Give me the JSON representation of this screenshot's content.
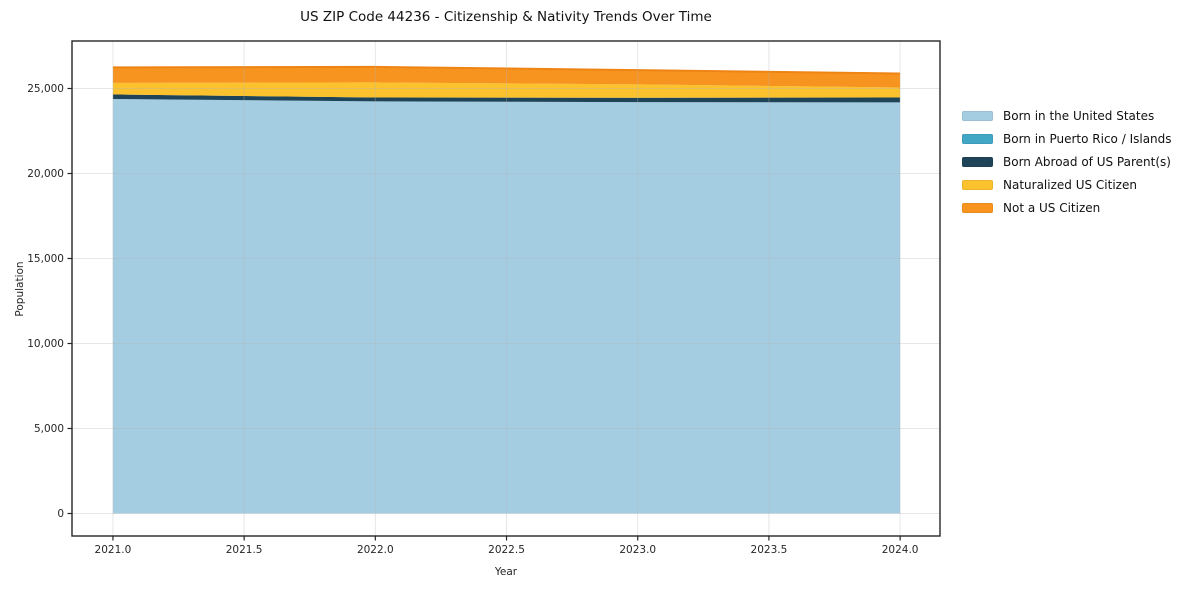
{
  "chart_data": {
    "type": "area",
    "stacked": true,
    "title": "US ZIP Code 44236 - Citizenship & Nativity Trends Over Time",
    "xlabel": "Year",
    "ylabel": "Population",
    "x": [
      2021,
      2022,
      2023,
      2024
    ],
    "series": [
      {
        "name": "Born in the United States",
        "color": "#a5cde2",
        "values": [
          24380,
          24240,
          24200,
          24180
        ]
      },
      {
        "name": "Born in Puerto Rico / Islands",
        "color": "#42a6c6",
        "values": [
          0,
          0,
          0,
          0
        ]
      },
      {
        "name": "Born Abroad of US Parent(s)",
        "color": "#1f4457",
        "values": [
          270,
          230,
          250,
          290
        ]
      },
      {
        "name": "Naturalized US Citizen",
        "color": "#fbc22d",
        "values": [
          680,
          890,
          790,
          590
        ]
      },
      {
        "name": "Not a US Citizen",
        "color": "#f7941f",
        "values": [
          910,
          910,
          840,
          820
        ]
      }
    ],
    "stack_totals": [
      26240,
      26270,
      26080,
      25880
    ],
    "xticks": [
      2021.0,
      2021.5,
      2022.0,
      2022.5,
      2023.0,
      2023.5,
      2024.0
    ],
    "yticks": [
      0,
      5000,
      10000,
      15000,
      20000,
      25000
    ],
    "xlim": [
      2020.844,
      2024.152
    ],
    "ylim": [
      -1323,
      27794
    ],
    "grid": true,
    "legend_position": "right-outside",
    "top_edge_color": "#ee8414",
    "spine_color": "#262626",
    "grid_color": "#b4b4b4"
  }
}
